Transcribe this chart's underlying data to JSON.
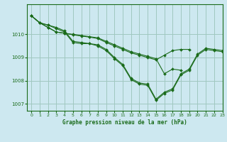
{
  "title": "Graphe pression niveau de la mer (hPa)",
  "bg_color": "#cde8f0",
  "grid_color": "#a0c8c0",
  "line_color": "#1a6b1a",
  "xlim": [
    -0.5,
    23
  ],
  "ylim": [
    1006.7,
    1011.3
  ],
  "yticks": [
    1007,
    1008,
    1009,
    1010
  ],
  "xticks": [
    0,
    1,
    2,
    3,
    4,
    5,
    6,
    7,
    8,
    9,
    10,
    11,
    12,
    13,
    14,
    15,
    16,
    17,
    18,
    19,
    20,
    21,
    22,
    23
  ],
  "series": [
    [
      1010.8,
      1010.5,
      1010.4,
      1010.3,
      1010.15,
      1009.7,
      1009.65,
      1009.6,
      1009.55,
      1009.35,
      1009.0,
      1008.7,
      1008.1,
      1007.9,
      1007.85,
      1007.2,
      1007.5,
      1007.65,
      1008.3,
      1008.5,
      1009.15,
      1009.4,
      1009.35,
      1009.3
    ],
    [
      1010.8,
      1010.5,
      1010.4,
      1010.25,
      1010.1,
      1009.65,
      1009.6,
      1009.6,
      1009.5,
      1009.3,
      1008.95,
      1008.65,
      1008.05,
      1007.85,
      1007.8,
      1007.15,
      1007.45,
      1007.6,
      1008.25,
      1008.45,
      1009.1,
      1009.35,
      1009.3,
      1009.25
    ],
    [
      1010.8,
      1010.5,
      1010.3,
      1010.1,
      1010.05,
      1010.0,
      1009.95,
      1009.9,
      1009.85,
      1009.7,
      1009.55,
      1009.4,
      1009.25,
      1009.15,
      1009.05,
      1008.95,
      1008.3,
      1008.5,
      1008.45,
      null,
      null,
      null,
      null,
      null
    ],
    [
      1010.8,
      1010.5,
      1010.3,
      1010.1,
      1010.05,
      1009.98,
      1009.93,
      1009.88,
      1009.82,
      1009.65,
      1009.5,
      1009.35,
      1009.2,
      1009.1,
      1009.0,
      1008.9,
      1009.1,
      1009.3,
      1009.35,
      1009.35,
      null,
      null,
      null,
      null
    ]
  ]
}
